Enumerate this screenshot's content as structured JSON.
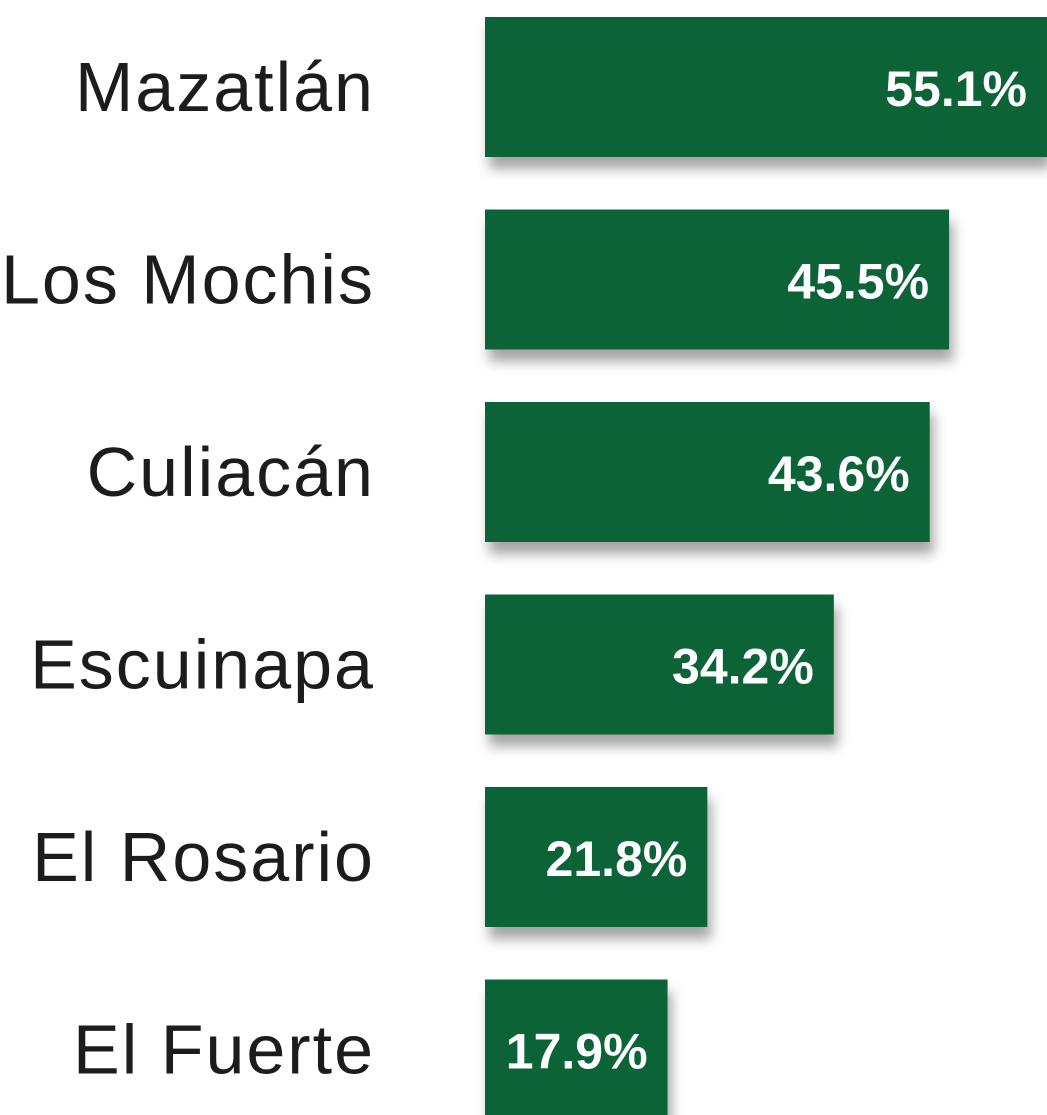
{
  "chart_data": {
    "type": "barh",
    "categories": [
      "Mazatlán",
      "Los Mochis",
      "Culiacán",
      "Escuinapa",
      "El Rosario",
      "El Fuerte"
    ],
    "values": [
      55.1,
      45.5,
      43.6,
      34.2,
      21.8,
      17.9
    ],
    "value_labels": [
      "55.1%",
      "45.5%",
      "43.6%",
      "34.2%",
      "21.8%",
      "17.9%"
    ],
    "color": "#0e6337"
  }
}
